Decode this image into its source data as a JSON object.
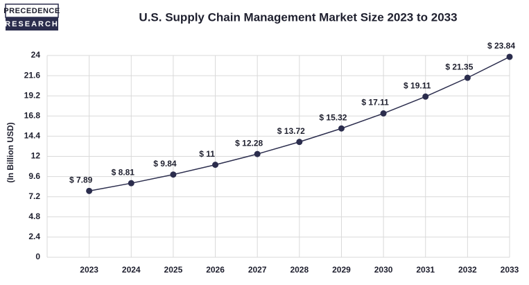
{
  "chart_data": {
    "type": "line",
    "brand": [
      "PRECEDENCE",
      "RESEARCH"
    ],
    "title": "U.S. Supply Chain Management Market Size 2023 to 2033",
    "y_label": "(In Billion USD)",
    "categories": [
      "2023",
      "2024",
      "2025",
      "2026",
      "2027",
      "2028",
      "2029",
      "2030",
      "2031",
      "2032",
      "2033"
    ],
    "values": [
      7.89,
      8.81,
      9.84,
      11,
      12.28,
      13.72,
      15.32,
      17.11,
      19.11,
      21.35,
      23.84
    ],
    "value_labels": [
      "$ 7.89",
      "$ 8.81",
      "$ 9.84",
      "$ 11",
      "$ 12.28",
      "$ 13.72",
      "$ 15.32",
      "$ 17.11",
      "$ 19.11",
      "$ 21.35",
      "$ 23.84"
    ],
    "color": "#2b2d4d",
    "ylim": [
      0,
      24
    ],
    "yticks": [
      0,
      2.4,
      4.8,
      7.2,
      9.6,
      12,
      14.4,
      16.8,
      19.2,
      21.6,
      24
    ],
    "grid": true
  }
}
